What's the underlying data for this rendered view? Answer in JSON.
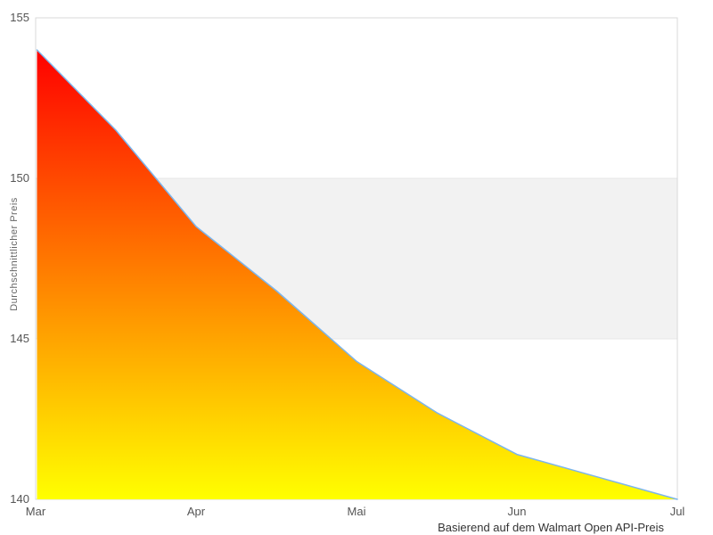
{
  "chart_data": {
    "type": "area",
    "title": "",
    "ylabel": "Durchschnittlicher Preis",
    "caption": "Basierend auf dem Walmart Open API-Preis",
    "series": [
      {
        "name": "Durchschnittlicher Preis",
        "x": [
          0,
          0.5,
          1,
          1.5,
          2,
          2.5,
          3,
          3.5,
          4
        ],
        "values": [
          154.0,
          151.5,
          148.5,
          146.5,
          144.3,
          142.7,
          141.4,
          140.7,
          140.0
        ]
      }
    ],
    "x_tick_labels": [
      "Mar",
      "Apr",
      "Mai",
      "Jun",
      "Jul"
    ],
    "x_tick_positions": [
      0,
      1,
      2,
      3,
      4
    ],
    "y_ticks": [
      140,
      145,
      150,
      155
    ],
    "xlim": [
      0,
      4
    ],
    "ylim": [
      140,
      155
    ],
    "grid": false,
    "legend": false,
    "plot_band": {
      "from": 145,
      "to": 150,
      "color": "#f2f2f2",
      "border_color": "#e7e7e7"
    },
    "colors": {
      "line": "#7cb5ec",
      "area_gradient_top": "#ff0000",
      "area_gradient_bottom": "#ffff00",
      "frame": "#d9d9d9",
      "tick_label": "#555555",
      "axis_title": "#666666",
      "caption": "#333333"
    }
  }
}
